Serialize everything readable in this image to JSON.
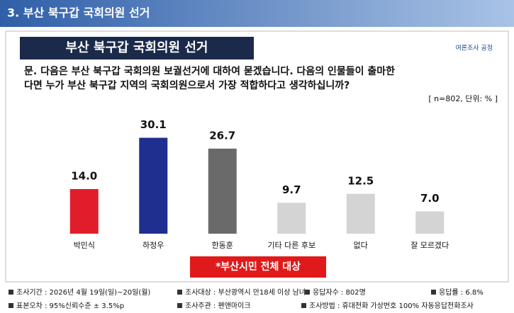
{
  "header": {
    "title": "3. 부산 북구갑 국회의원 선거"
  },
  "slide": {
    "title": "부산 북구갑 국회의원 선거",
    "logo": "여론조사 공정",
    "question": [
      "문. 다음은 부산 북구갑 국회의원 보궐선거에 대하여 묻겠습니다. 다음의 인물들이 출마한",
      "다면 누가 부산 북구갑 지역의 국회의원으로서 가장 적합하다고 생각하십니까?"
    ],
    "note": "[ n=802, 단위: % ]",
    "banner": "*부산시민 전체 대상"
  },
  "chart_data": {
    "type": "bar",
    "categories": [
      "박민식",
      "하정우",
      "한동훈",
      "기타 다른 후보",
      "없다",
      "잘 모르겠다"
    ],
    "values": [
      14.0,
      30.1,
      26.7,
      9.7,
      12.5,
      7.0
    ],
    "value_labels": [
      "14.0",
      "30.1",
      "26.7",
      "9.7",
      "12.5",
      "7.0"
    ],
    "colors": [
      "#e11d2b",
      "#1e2f8f",
      "#6a6a6a",
      "#d4d4d4",
      "#d4d4d4",
      "#d4d4d4"
    ]
  },
  "footer": {
    "items": [
      "조사기간 : 2026년 4월 19일(일)~20일(월)",
      "조사대상 : 부산광역시 만18세 이상 남녀",
      "응답자수 : 802명",
      "응답률 : 6.8%",
      "표본오차 : 95%신뢰수준 ± 3.5%p",
      "조사주관 : 펜앤마이크",
      "조사방법 : 휴대전화 가상번호 100% 자동응답전화조사"
    ]
  }
}
